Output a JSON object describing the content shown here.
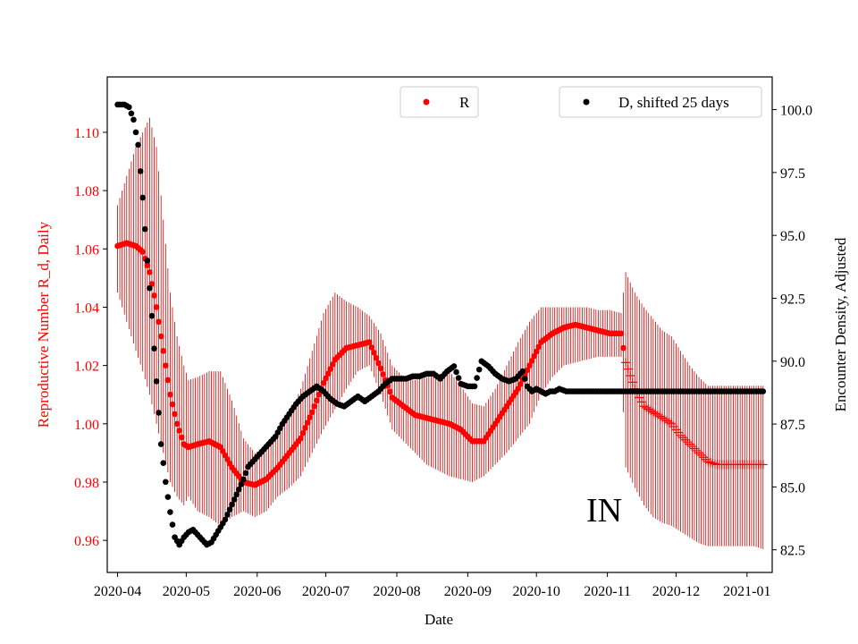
{
  "chart_data": {
    "type": "scatter",
    "region_label": "IN",
    "xlabel": "Date",
    "ylabel_left": "Reproductive Number R_d, Daily",
    "ylabel_right": "Encounter Density, Adjusted",
    "x_ticks": [
      "2020-04",
      "2020-05",
      "2020-06",
      "2020-07",
      "2020-08",
      "2020-09",
      "2020-10",
      "2020-11",
      "2020-12",
      "2021-01"
    ],
    "x_range_days": [
      -4.5,
      286
    ],
    "y_left": {
      "range": [
        0.949,
        1.119
      ],
      "ticks": [
        0.96,
        0.98,
        1.0,
        1.02,
        1.04,
        1.06,
        1.08,
        1.1
      ],
      "tick_labels": [
        "0.96",
        "0.98",
        "1.00",
        "1.02",
        "1.04",
        "1.06",
        "1.08",
        "1.10"
      ]
    },
    "y_right": {
      "range": [
        81.6,
        101.3
      ],
      "ticks": [
        82.5,
        85.0,
        87.5,
        90.0,
        92.5,
        95.0,
        97.5,
        100.0
      ],
      "tick_labels": [
        "82.5",
        "85.0",
        "87.5",
        "90.0",
        "92.5",
        "95.0",
        "97.5",
        "100.0"
      ]
    },
    "legend": [
      {
        "label": "R",
        "color": "#ff0000",
        "position": "top-center"
      },
      {
        "label": "D, shifted 25 days",
        "color": "#000000",
        "position": "top-right"
      }
    ],
    "series": [
      {
        "name": "R",
        "axis": "left",
        "color": "#ff0000",
        "errorbar_color": "#cc0000",
        "marker": "dot until 2020-11-10, then plus",
        "marker_switch_day": 222,
        "x_days": [
          0,
          4,
          8,
          11,
          14,
          17,
          20,
          23,
          26,
          29,
          31,
          35,
          40,
          45,
          50,
          55,
          60,
          65,
          70,
          75,
          80,
          85,
          90,
          95,
          100,
          105,
          110,
          115,
          120,
          125,
          130,
          135,
          140,
          145,
          150,
          155,
          160,
          165,
          170,
          175,
          180,
          185,
          190,
          195,
          200,
          205,
          210,
          215,
          220,
          222,
          226,
          230,
          234,
          238,
          242,
          246,
          250,
          254,
          258,
          262,
          266,
          270,
          274,
          278,
          282
        ],
        "values": [
          1.061,
          1.062,
          1.061,
          1.059,
          1.052,
          1.04,
          1.025,
          1.01,
          1.0,
          0.993,
          0.992,
          0.993,
          0.994,
          0.992,
          0.985,
          0.98,
          0.979,
          0.981,
          0.985,
          0.99,
          0.995,
          1.004,
          1.014,
          1.022,
          1.026,
          1.027,
          1.028,
          1.019,
          1.009,
          1.006,
          1.003,
          1.002,
          1.001,
          1.0,
          0.998,
          0.994,
          0.994,
          1.0,
          1.006,
          1.012,
          1.02,
          1.028,
          1.031,
          1.033,
          1.034,
          1.033,
          1.032,
          1.031,
          1.031,
          1.021,
          1.012,
          1.006,
          1.004,
          1.002,
          1.0,
          0.996,
          0.993,
          0.99,
          0.987,
          0.986,
          0.986,
          0.986,
          0.986,
          0.986,
          0.986
        ],
        "err_low": [
          1.045,
          1.035,
          1.025,
          1.018,
          1.01,
          1.0,
          0.99,
          0.98,
          0.975,
          0.972,
          0.975,
          0.97,
          0.968,
          0.965,
          0.968,
          0.97,
          0.968,
          0.97,
          0.975,
          0.978,
          0.982,
          0.99,
          0.998,
          1.005,
          1.012,
          1.018,
          1.02,
          1.01,
          0.998,
          0.994,
          0.99,
          0.986,
          0.984,
          0.982,
          0.981,
          0.98,
          0.982,
          0.986,
          0.99,
          0.995,
          1.0,
          1.01,
          1.016,
          1.02,
          1.021,
          1.022,
          1.023,
          1.023,
          1.023,
          0.985,
          0.978,
          0.972,
          0.968,
          0.966,
          0.965,
          0.963,
          0.961,
          0.959,
          0.958,
          0.958,
          0.958,
          0.958,
          0.958,
          0.958,
          0.957
        ],
        "err_high": [
          1.075,
          1.085,
          1.095,
          1.1,
          1.105,
          1.095,
          1.07,
          1.045,
          1.03,
          1.02,
          1.015,
          1.016,
          1.018,
          1.018,
          1.008,
          0.995,
          0.99,
          0.992,
          0.996,
          1.003,
          1.012,
          1.025,
          1.038,
          1.045,
          1.042,
          1.04,
          1.037,
          1.031,
          1.02,
          1.016,
          1.015,
          1.016,
          1.017,
          1.018,
          1.013,
          1.007,
          1.006,
          1.012,
          1.02,
          1.028,
          1.035,
          1.04,
          1.04,
          1.04,
          1.04,
          1.04,
          1.039,
          1.039,
          1.038,
          1.052,
          1.045,
          1.04,
          1.036,
          1.032,
          1.03,
          1.025,
          1.02,
          1.016,
          1.013,
          1.013,
          1.013,
          1.013,
          1.013,
          1.013,
          1.013
        ]
      },
      {
        "name": "D, shifted 25 days",
        "axis": "right",
        "color": "#000000",
        "marker": "dot",
        "x_days": [
          0,
          3,
          5,
          7,
          9,
          11,
          13,
          15,
          17,
          19,
          21,
          23,
          25,
          27,
          29,
          31,
          33,
          35,
          37,
          39,
          41,
          43,
          45,
          47,
          49,
          51,
          53,
          55,
          57,
          60,
          63,
          66,
          69,
          72,
          75,
          78,
          81,
          84,
          87,
          90,
          93,
          96,
          99,
          102,
          105,
          108,
          111,
          114,
          117,
          120,
          123,
          126,
          129,
          132,
          135,
          138,
          141,
          144,
          147,
          150,
          153,
          156,
          159,
          162,
          165,
          168,
          171,
          174,
          177,
          179,
          181,
          183,
          185,
          187,
          189,
          191,
          193,
          196,
          199,
          202,
          205,
          208,
          211,
          214,
          217,
          220,
          222,
          225,
          228,
          232,
          236,
          240,
          244,
          248,
          252,
          256,
          260,
          264,
          268,
          272,
          276,
          280,
          282
        ],
        "values": [
          100.2,
          100.2,
          100.1,
          99.6,
          98.6,
          96.5,
          94.0,
          91.8,
          89.2,
          86.7,
          85.2,
          84.0,
          83.0,
          82.7,
          83.0,
          83.2,
          83.3,
          83.1,
          82.9,
          82.7,
          82.8,
          83.1,
          83.4,
          83.7,
          84.1,
          84.5,
          84.9,
          85.3,
          85.8,
          86.1,
          86.4,
          86.7,
          87.0,
          87.5,
          87.9,
          88.3,
          88.6,
          88.8,
          89.0,
          88.8,
          88.5,
          88.3,
          88.2,
          88.4,
          88.6,
          88.4,
          88.6,
          88.8,
          89.1,
          89.3,
          89.3,
          89.3,
          89.4,
          89.4,
          89.5,
          89.5,
          89.3,
          89.6,
          89.8,
          89.1,
          89.0,
          89.0,
          90.0,
          89.8,
          89.5,
          89.3,
          89.2,
          89.3,
          89.6,
          89.0,
          88.8,
          88.9,
          88.8,
          88.7,
          88.8,
          88.8,
          88.9,
          88.8,
          88.8,
          88.8,
          88.8,
          88.8,
          88.8,
          88.8,
          88.8,
          88.8,
          88.8,
          88.8,
          88.8,
          88.8,
          88.8,
          88.8,
          88.8,
          88.8,
          88.8,
          88.8,
          88.8,
          88.8,
          88.8,
          88.8,
          88.8,
          88.8,
          88.8
        ]
      }
    ]
  }
}
